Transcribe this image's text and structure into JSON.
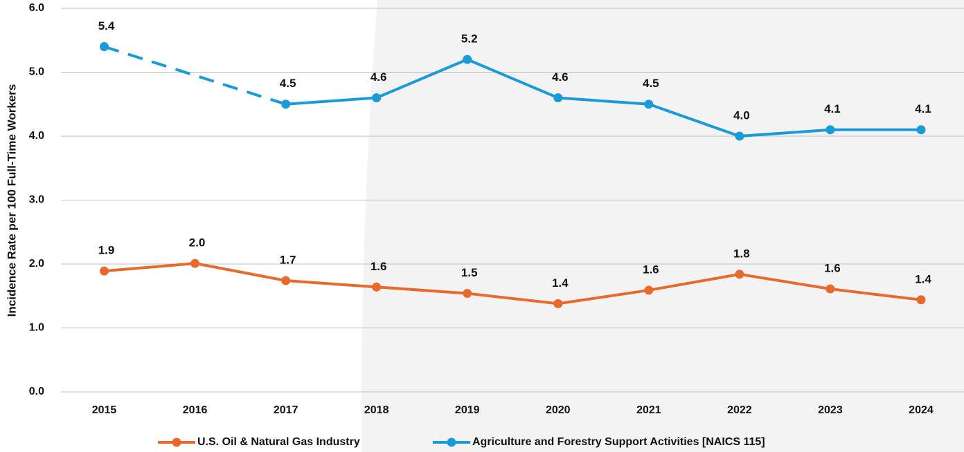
{
  "chart_data": {
    "type": "line",
    "y_axis_label": "Incidence Rate per 100 Full-Time Workers",
    "categories": [
      "2015",
      "2016",
      "2017",
      "2018",
      "2019",
      "2020",
      "2021",
      "2022",
      "2023",
      "2024"
    ],
    "series": [
      {
        "name": "U.S. Oil & Natural Gas Industry",
        "color": "#e8692c",
        "values": [
          1.89,
          2.01,
          1.74,
          1.64,
          1.54,
          1.38,
          1.59,
          1.84,
          1.61,
          1.44
        ],
        "value_labels": [
          "1.9",
          "2.0",
          "1.7",
          "1.6",
          "1.5",
          "1.4",
          "1.6",
          "1.8",
          "1.6",
          "1.4"
        ]
      },
      {
        "name": "Agriculture and Forestry Support Activities [NAICS 115]",
        "color": "#1a9ad6",
        "values": [
          5.4,
          null,
          4.5,
          4.6,
          5.2,
          4.6,
          4.5,
          4.0,
          4.1,
          4.1
        ],
        "value_labels": [
          "5.4",
          null,
          "4.5",
          "4.6",
          "5.2",
          "4.6",
          "4.5",
          "4.0",
          "4.1",
          "4.1"
        ]
      }
    ],
    "gap_style": "dashed",
    "ylim": [
      0,
      6
    ],
    "yticks": [
      {
        "value": 0,
        "label": "0.0"
      },
      {
        "value": 1,
        "label": "1.0"
      },
      {
        "value": 2,
        "label": "2.0"
      },
      {
        "value": 3,
        "label": "3.0"
      },
      {
        "value": 4,
        "label": "4.0"
      },
      {
        "value": 5,
        "label": "5.0"
      },
      {
        "value": 6,
        "label": "6.0"
      }
    ],
    "grid": true,
    "legend": "bottom"
  }
}
